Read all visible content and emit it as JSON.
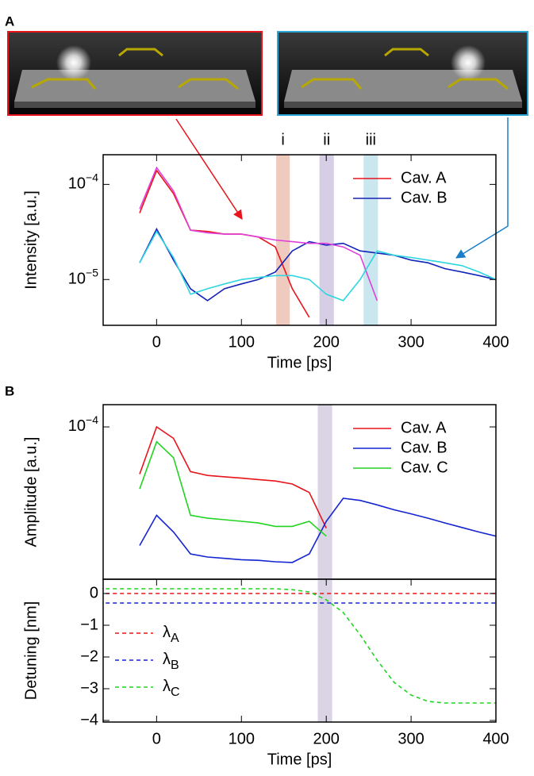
{
  "panel_labels": [
    "A",
    "B"
  ],
  "chart_data": [
    {
      "type": "line",
      "xlabel": "Time [ps]",
      "ylabel": "Intensity [a.u.]",
      "log_y": true,
      "legend": "upper right",
      "xlim": [
        -63,
        400
      ],
      "ylim": [
        3.3e-06,
        0.000205
      ],
      "xticks": [
        0,
        100,
        200,
        300,
        400
      ],
      "yticks": [
        {
          "value": 0.0001,
          "label": "10−4"
        },
        {
          "value": 1e-05,
          "label": "10−5"
        }
      ],
      "bands": [
        {
          "label": "i",
          "range": [
            141,
            157
          ],
          "color": "#e9b9aa"
        },
        {
          "label": "ii",
          "range": [
            192,
            209
          ],
          "color": "#c8bedb"
        },
        {
          "label": "iii",
          "range": [
            244,
            261
          ],
          "color": "#b8dde9"
        }
      ],
      "x": [
        -40,
        -20,
        0,
        20,
        40,
        60,
        80,
        100,
        120,
        140,
        160,
        180,
        200,
        220,
        240,
        260,
        280,
        300,
        320,
        340,
        360,
        380,
        400
      ],
      "series": [
        {
          "name": "Cav. A",
          "color": "#e8141b",
          "values": [
            null,
            5e-05,
            0.00014,
            8e-05,
            3.3e-05,
            3.2e-05,
            3e-05,
            3e-05,
            2.8e-05,
            2.2e-05,
            8e-06,
            4e-06,
            null,
            null,
            null,
            null,
            null,
            null,
            null,
            null,
            null,
            null,
            null
          ]
        },
        {
          "name": "Cav. B",
          "color": "#1424b8",
          "values": [
            null,
            1.5e-05,
            3.4e-05,
            1.6e-05,
            8e-06,
            6e-06,
            8e-06,
            9e-06,
            1e-05,
            1.2e-05,
            2e-05,
            2.5e-05,
            2.3e-05,
            2.4e-05,
            2e-05,
            1.9e-05,
            1.8e-05,
            1.6e-05,
            1.5e-05,
            1.3e-05,
            1.2e-05,
            1.1e-05,
            1e-05
          ]
        },
        {
          "color": "#e040d8",
          "values": [
            null,
            5.5e-05,
            0.00015,
            8.5e-05,
            3.3e-05,
            3.1e-05,
            3e-05,
            3e-05,
            2.8e-05,
            2.6e-05,
            2.5e-05,
            2.4e-05,
            2.4e-05,
            2.2e-05,
            1.8e-05,
            6e-06,
            null,
            null,
            null,
            null,
            null,
            null,
            null
          ]
        },
        {
          "color": "#2fd6e0",
          "values": [
            null,
            1.5e-05,
            3.2e-05,
            1.7e-05,
            7e-06,
            8e-06,
            9e-06,
            1e-05,
            1.05e-05,
            1.1e-05,
            1.1e-05,
            1e-05,
            7e-06,
            6e-06,
            1e-05,
            2e-05,
            1.8e-05,
            1.7e-05,
            1.6e-05,
            1.5e-05,
            1.4e-05,
            1.2e-05,
            1e-05
          ]
        }
      ]
    },
    {
      "type": "line",
      "ylabel": "Amplitude [a.u.]",
      "log_y": true,
      "legend": "upper right",
      "xlim": [
        -63,
        400
      ],
      "ylim": [
        5.2e-06,
        0.000154
      ],
      "yticks": [
        {
          "value": 0.0001,
          "label": "10−4"
        }
      ],
      "bands": [
        {
          "range": [
            190,
            207
          ],
          "color": "#cfc6dc"
        }
      ],
      "x": [
        -40,
        -20,
        0,
        20,
        40,
        60,
        80,
        100,
        120,
        140,
        160,
        180,
        200,
        220,
        240,
        260,
        280,
        300,
        320,
        340,
        360,
        380,
        400
      ],
      "series": [
        {
          "name": "Cav. A",
          "color": "#e8141b",
          "values": [
            null,
            4e-05,
            0.0001,
            8e-05,
            4.2e-05,
            3.9e-05,
            3.8e-05,
            3.7e-05,
            3.6e-05,
            3.5e-05,
            3.3e-05,
            2.8e-05,
            1.4e-05,
            null,
            null,
            null,
            null,
            null,
            null,
            null,
            null,
            null,
            null
          ]
        },
        {
          "name": "Cav. B",
          "color": "#1424d0",
          "values": [
            null,
            1e-05,
            1.8e-05,
            1.3e-05,
            8.5e-06,
            8e-06,
            7.8e-06,
            7.6e-06,
            7.5e-06,
            7.3e-06,
            7.2e-06,
            8.5e-06,
            1.6e-05,
            2.5e-05,
            2.4e-05,
            2.2e-05,
            2e-05,
            1.85e-05,
            1.7e-05,
            1.55e-05,
            1.42e-05,
            1.3e-05,
            1.2e-05
          ]
        },
        {
          "name": "Cav. C",
          "color": "#22d422",
          "values": [
            null,
            3e-05,
            7.5e-05,
            5.5e-05,
            1.8e-05,
            1.7e-05,
            1.65e-05,
            1.6e-05,
            1.55e-05,
            1.45e-05,
            1.45e-05,
            1.6e-05,
            1.2e-05,
            null,
            null,
            null,
            null,
            null,
            null,
            null,
            null,
            null,
            null
          ]
        }
      ]
    },
    {
      "type": "line",
      "xlabel": "Time [ps]",
      "ylabel": "Detuning [nm]",
      "legend": "lower left",
      "dashed": true,
      "xlim": [
        -63,
        400
      ],
      "ylim": [
        -4.05,
        0.45
      ],
      "xticks": [
        0,
        100,
        200,
        300,
        400
      ],
      "yticks": [
        0,
        {
          "value": -1,
          "label": "−1"
        },
        {
          "value": -2,
          "label": "−2"
        },
        {
          "value": -3,
          "label": "−3"
        },
        {
          "value": -4,
          "label": "−4"
        }
      ],
      "bands": [
        {
          "range": [
            190,
            207
          ],
          "color": "#cfc6dc"
        }
      ],
      "x": [
        -60,
        -40,
        -20,
        0,
        20,
        40,
        60,
        80,
        100,
        120,
        140,
        160,
        180,
        200,
        220,
        240,
        260,
        280,
        300,
        320,
        340,
        360,
        380,
        400
      ],
      "series": [
        {
          "name": "λA",
          "color": "#e8141b",
          "values": [
            0,
            0,
            0,
            0,
            0,
            0,
            0,
            0,
            0,
            0,
            0,
            0,
            0,
            0,
            0,
            0,
            0,
            0,
            0,
            0,
            0,
            0,
            0,
            0
          ]
        },
        {
          "name": "λB",
          "color": "#1424d0",
          "values": [
            -0.3,
            -0.3,
            -0.3,
            -0.3,
            -0.3,
            -0.3,
            -0.3,
            -0.3,
            -0.3,
            -0.3,
            -0.3,
            -0.3,
            -0.3,
            -0.3,
            -0.3,
            -0.3,
            -0.3,
            -0.3,
            -0.3,
            -0.3,
            -0.3,
            -0.3,
            -0.3,
            -0.3
          ]
        },
        {
          "name": "λC",
          "color": "#22d422",
          "values": [
            0.15,
            0.15,
            0.15,
            0.15,
            0.15,
            0.15,
            0.15,
            0.15,
            0.15,
            0.15,
            0.15,
            0.12,
            0.05,
            -0.2,
            -0.6,
            -1.3,
            -2.1,
            -2.8,
            -3.2,
            -3.4,
            -3.45,
            -3.45,
            -3.45,
            -3.45
          ]
        }
      ]
    }
  ]
}
